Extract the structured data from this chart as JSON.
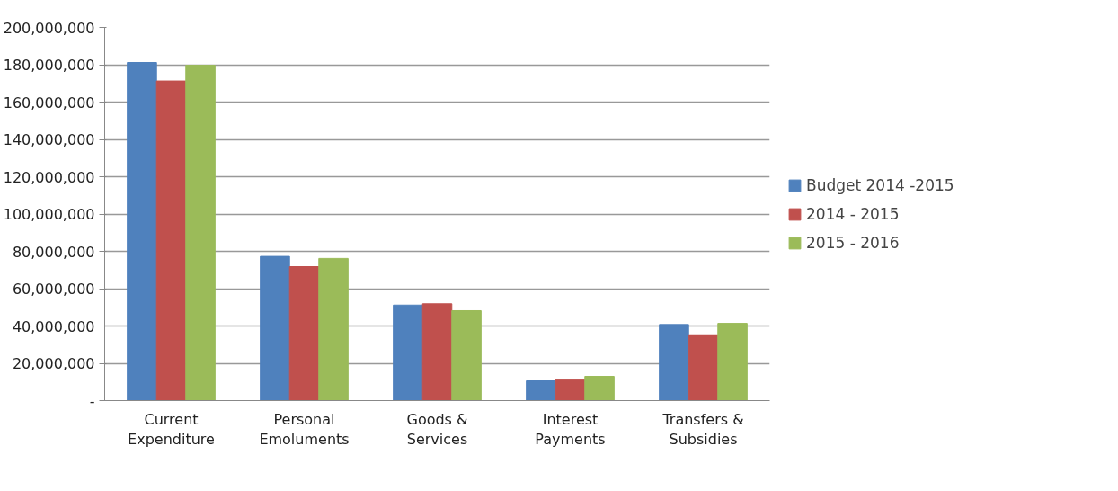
{
  "chart_data": {
    "type": "bar",
    "categories": [
      "Current\nExpenditure",
      "Personal\nEmoluments",
      "Goods &\nServices",
      "Interest\nPayments",
      "Transfers &\nSubsidies"
    ],
    "series": [
      {
        "name": "Budget 2014 -2015",
        "color": "#4f81bd",
        "values": [
          181200000,
          77300000,
          51200000,
          10600000,
          40800000
        ]
      },
      {
        "name": "2014 - 2015",
        "color": "#c0504d",
        "values": [
          171300000,
          71800000,
          51900000,
          11200000,
          35300000
        ]
      },
      {
        "name": "2015 - 2016",
        "color": "#9bbb59",
        "values": [
          179700000,
          76200000,
          48200000,
          13000000,
          41400000
        ]
      }
    ],
    "ylim": [
      0,
      200000000
    ],
    "yticks": [
      {
        "value": 0,
        "label": "-"
      },
      {
        "value": 20000000,
        "label": "20,000,000"
      },
      {
        "value": 40000000,
        "label": "40,000,000"
      },
      {
        "value": 60000000,
        "label": "60,000,000"
      },
      {
        "value": 80000000,
        "label": "80,000,000"
      },
      {
        "value": 100000000,
        "label": "100,000,000"
      },
      {
        "value": 120000000,
        "label": "120,000,000"
      },
      {
        "value": 140000000,
        "label": "140,000,000"
      },
      {
        "value": 160000000,
        "label": "160,000,000"
      },
      {
        "value": 180000000,
        "label": "180,000,000"
      },
      {
        "value": 200000000,
        "label": "200,000,000"
      }
    ],
    "grid": "y",
    "legend": "right"
  }
}
